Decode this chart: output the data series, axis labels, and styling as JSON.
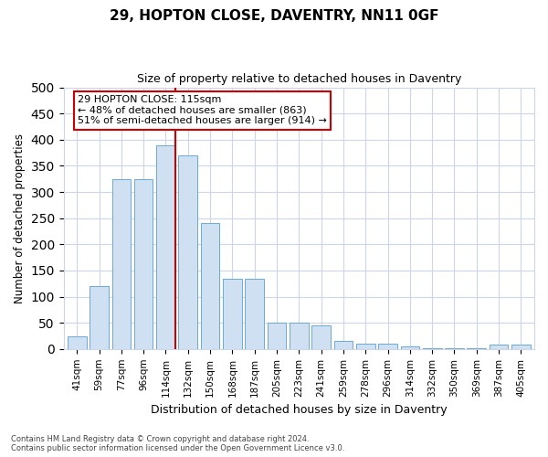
{
  "title1": "29, HOPTON CLOSE, DAVENTRY, NN11 0GF",
  "title2": "Size of property relative to detached houses in Daventry",
  "xlabel": "Distribution of detached houses by size in Daventry",
  "ylabel": "Number of detached properties",
  "categories": [
    "41sqm",
    "59sqm",
    "77sqm",
    "96sqm",
    "114sqm",
    "132sqm",
    "150sqm",
    "168sqm",
    "187sqm",
    "205sqm",
    "223sqm",
    "241sqm",
    "259sqm",
    "278sqm",
    "296sqm",
    "314sqm",
    "332sqm",
    "350sqm",
    "369sqm",
    "387sqm",
    "405sqm"
  ],
  "values": [
    25,
    120,
    325,
    325,
    390,
    370,
    240,
    135,
    135,
    50,
    50,
    45,
    15,
    10,
    10,
    5,
    2,
    2,
    2,
    8,
    8
  ],
  "bar_color": "#cfe0f2",
  "bar_edge_color": "#6aaad4",
  "vline_index": 4,
  "vline_color": "#cc0000",
  "annotation_line1": "29 HOPTON CLOSE: 115sqm",
  "annotation_line2": "← 48% of detached houses are smaller (863)",
  "annotation_line3": "51% of semi-detached houses are larger (914) →",
  "annotation_box_color": "#ffffff",
  "annotation_box_edge": "#cc0000",
  "ylim": [
    0,
    500
  ],
  "yticks": [
    0,
    50,
    100,
    150,
    200,
    250,
    300,
    350,
    400,
    450,
    500
  ],
  "footer1": "Contains HM Land Registry data © Crown copyright and database right 2024.",
  "footer2": "Contains public sector information licensed under the Open Government Licence v3.0.",
  "background_color": "#ffffff",
  "grid_color": "#ccd6e8",
  "fig_width": 6.0,
  "fig_height": 5.0,
  "dpi": 100
}
